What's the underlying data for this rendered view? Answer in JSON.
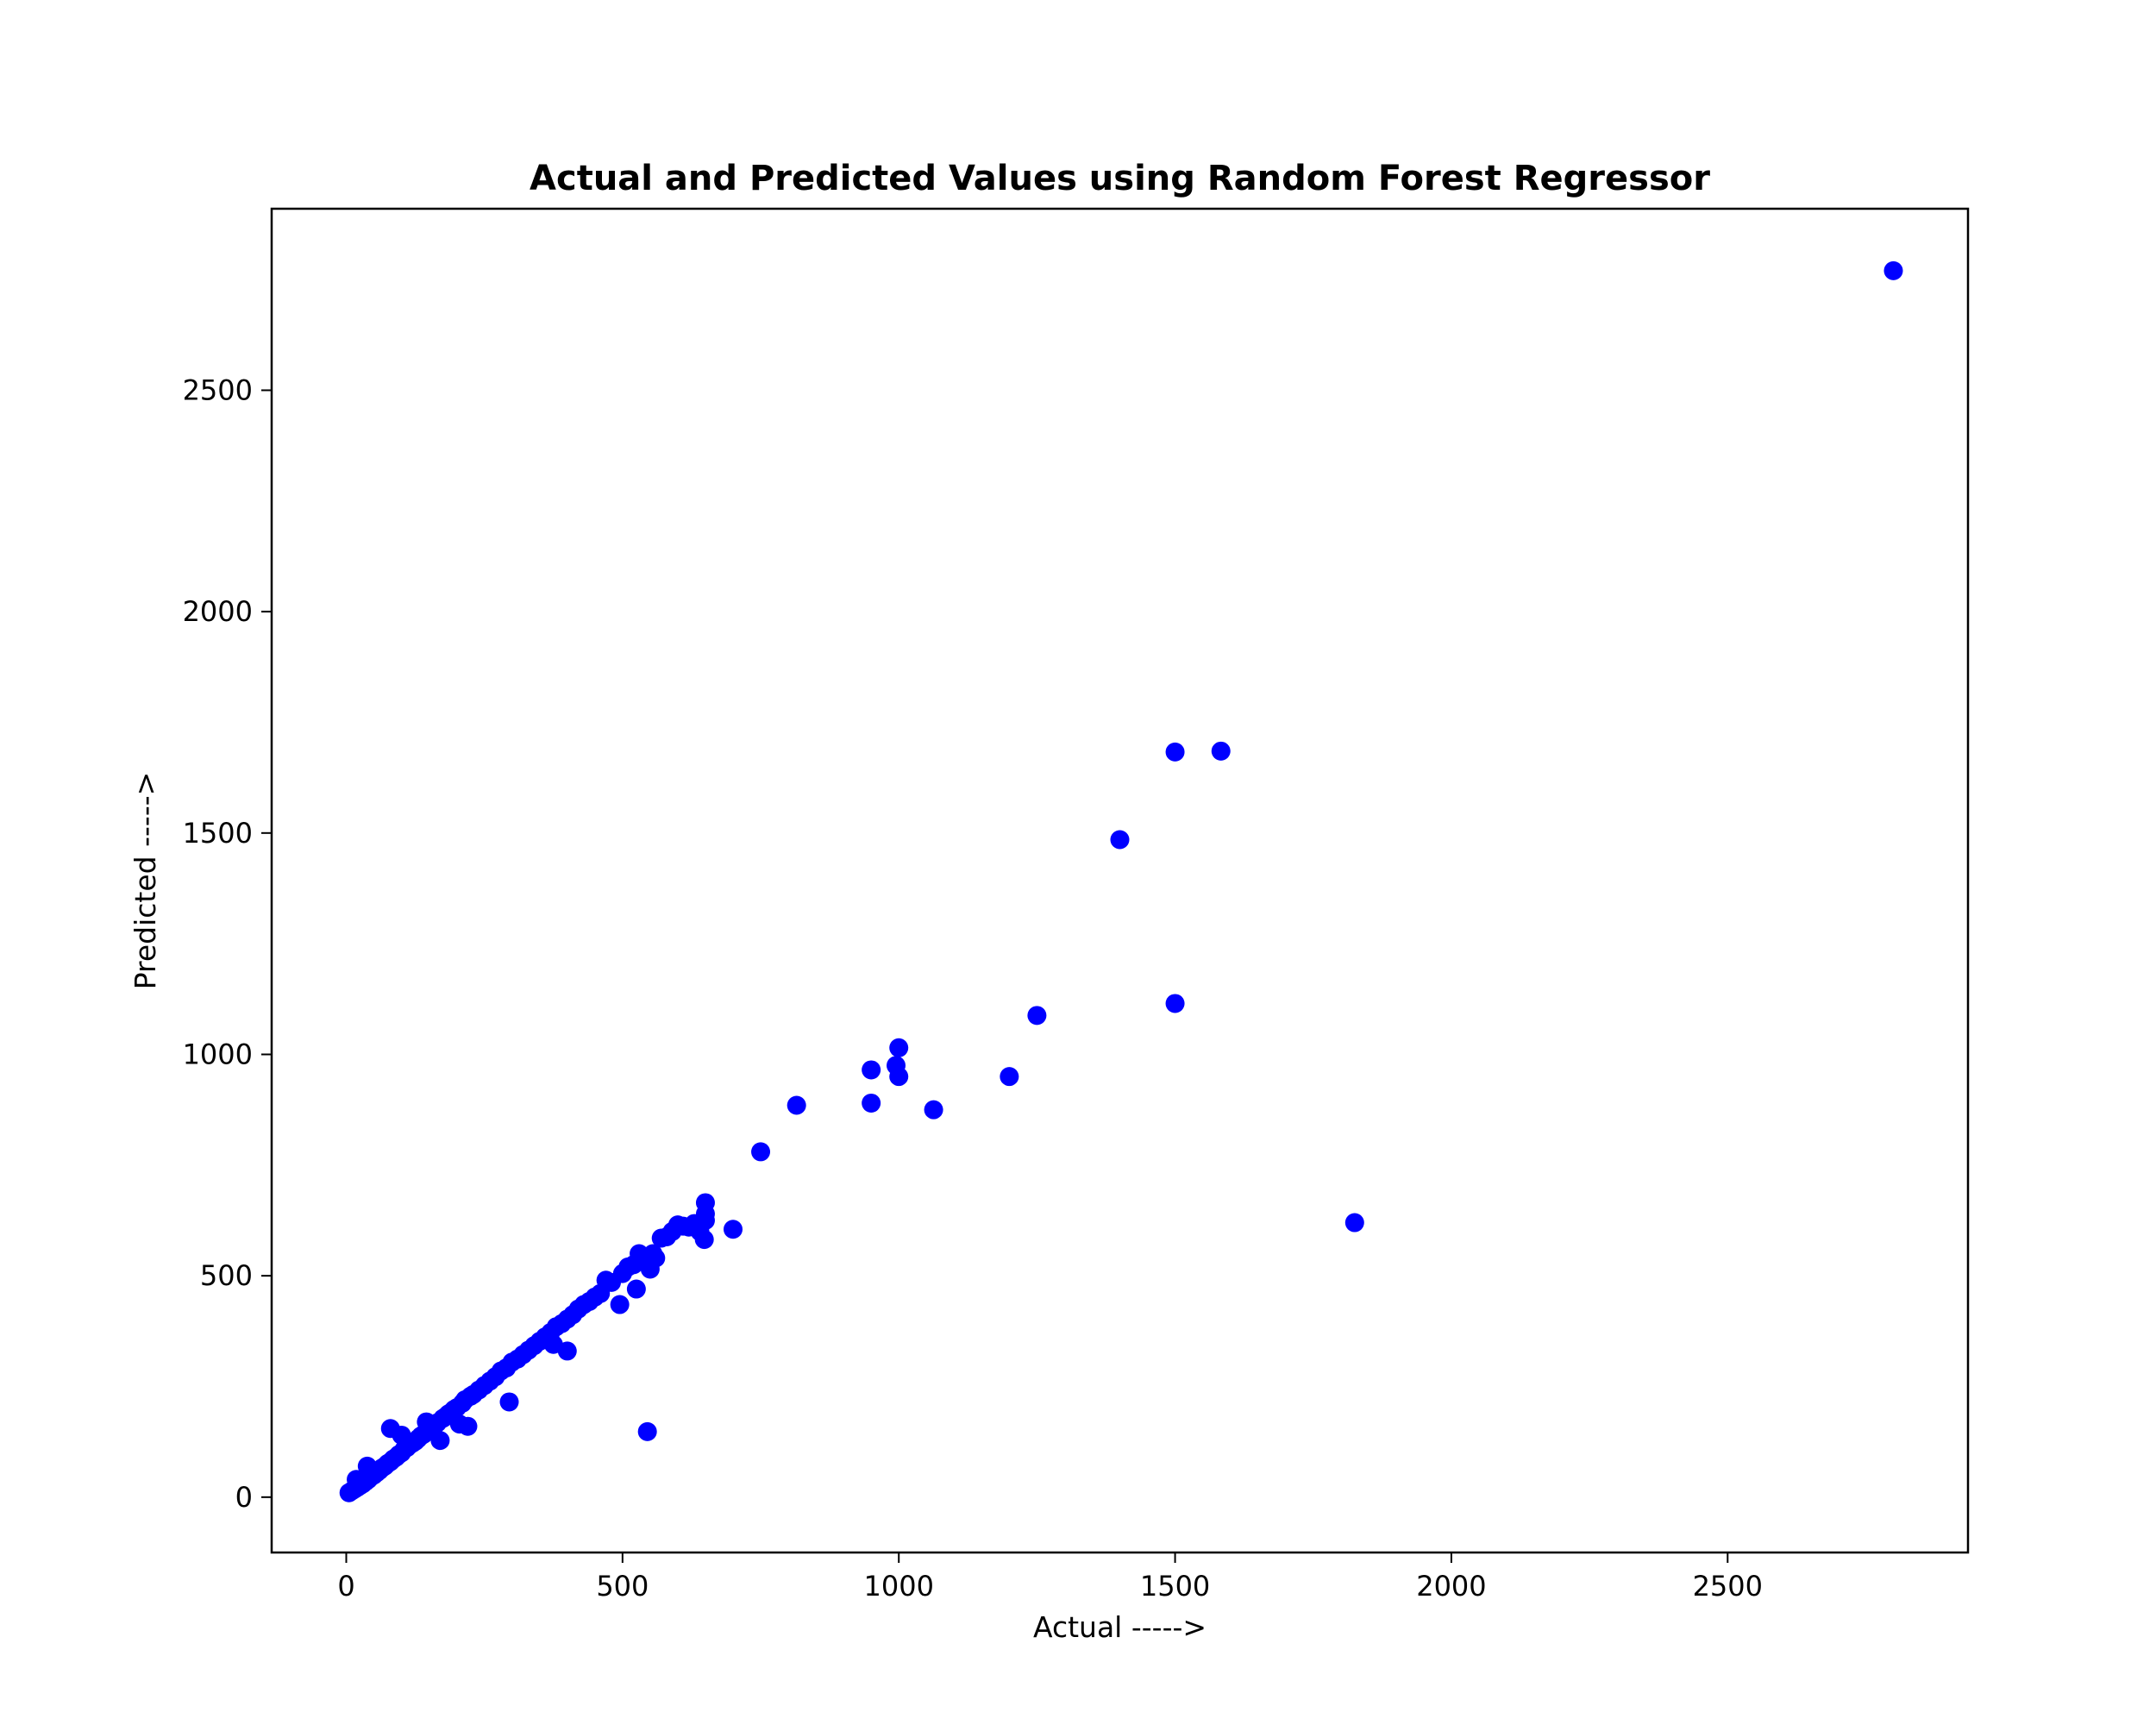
{
  "chart_data": {
    "type": "scatter",
    "title": "Actual and Predicted Values using Random Forest Regressor",
    "xlabel": "Actual ----->",
    "ylabel": "Predicted ----->",
    "xlim": [
      -135,
      2935
    ],
    "ylim": [
      -125,
      2910
    ],
    "xticks": [
      0,
      500,
      1000,
      1500,
      2000,
      2500
    ],
    "yticks": [
      0,
      500,
      1000,
      1500,
      2000,
      2500
    ],
    "xtick_labels": [
      "0",
      "500",
      "1000",
      "1500",
      "2000",
      "2500"
    ],
    "ytick_labels": [
      "0",
      "500",
      "1000",
      "1500",
      "2000",
      "2500"
    ],
    "grid": false,
    "legend": "none",
    "marker_color": "#0000ff",
    "series": [
      {
        "color": "#0000ff",
        "points": [
          [
            5,
            10
          ],
          [
            10,
            14
          ],
          [
            15,
            18
          ],
          [
            18,
            40
          ],
          [
            20,
            22
          ],
          [
            25,
            26
          ],
          [
            30,
            30
          ],
          [
            35,
            35
          ],
          [
            38,
            70
          ],
          [
            40,
            40
          ],
          [
            45,
            46
          ],
          [
            50,
            50
          ],
          [
            55,
            55
          ],
          [
            60,
            60
          ],
          [
            65,
            66
          ],
          [
            70,
            70
          ],
          [
            75,
            76
          ],
          [
            80,
            80
          ],
          [
            80,
            155
          ],
          [
            85,
            86
          ],
          [
            90,
            90
          ],
          [
            95,
            96
          ],
          [
            100,
            100
          ],
          [
            100,
            140
          ],
          [
            105,
            108
          ],
          [
            110,
            112
          ],
          [
            115,
            118
          ],
          [
            120,
            122
          ],
          [
            125,
            126
          ],
          [
            130,
            132
          ],
          [
            135,
            138
          ],
          [
            140,
            142
          ],
          [
            145,
            170
          ],
          [
            150,
            150
          ],
          [
            155,
            158
          ],
          [
            160,
            162
          ],
          [
            165,
            168
          ],
          [
            170,
            128
          ],
          [
            175,
            178
          ],
          [
            180,
            182
          ],
          [
            185,
            188
          ],
          [
            190,
            192
          ],
          [
            195,
            198
          ],
          [
            200,
            202
          ],
          [
            205,
            165
          ],
          [
            210,
            212
          ],
          [
            215,
            220
          ],
          [
            220,
            160
          ],
          [
            225,
            228
          ],
          [
            230,
            232
          ],
          [
            240,
            242
          ],
          [
            250,
            252
          ],
          [
            260,
            262
          ],
          [
            270,
            272
          ],
          [
            280,
            285
          ],
          [
            290,
            292
          ],
          [
            295,
            215
          ],
          [
            300,
            305
          ],
          [
            310,
            312
          ],
          [
            320,
            322
          ],
          [
            330,
            332
          ],
          [
            340,
            342
          ],
          [
            350,
            352
          ],
          [
            360,
            362
          ],
          [
            370,
            372
          ],
          [
            375,
            345
          ],
          [
            380,
            385
          ],
          [
            390,
            392
          ],
          [
            400,
            330
          ],
          [
            400,
            402
          ],
          [
            410,
            412
          ],
          [
            420,
            425
          ],
          [
            430,
            435
          ],
          [
            440,
            442
          ],
          [
            450,
            452
          ],
          [
            460,
            460
          ],
          [
            470,
            490
          ],
          [
            480,
            485
          ],
          [
            495,
            435
          ],
          [
            500,
            505
          ],
          [
            510,
            520
          ],
          [
            520,
            525
          ],
          [
            525,
            470
          ],
          [
            530,
            550
          ],
          [
            540,
            540
          ],
          [
            545,
            148
          ],
          [
            550,
            515
          ],
          [
            555,
            550
          ],
          [
            560,
            540
          ],
          [
            570,
            585
          ],
          [
            580,
            588
          ],
          [
            590,
            600
          ],
          [
            600,
            615
          ],
          [
            610,
            612
          ],
          [
            620,
            610
          ],
          [
            630,
            618
          ],
          [
            640,
            600
          ],
          [
            648,
            582
          ],
          [
            650,
            625
          ],
          [
            650,
            665
          ],
          [
            650,
            640
          ],
          [
            700,
            605
          ],
          [
            750,
            780
          ],
          [
            815,
            885
          ],
          [
            950,
            890
          ],
          [
            950,
            965
          ],
          [
            995,
            975
          ],
          [
            1000,
            1015
          ],
          [
            1000,
            950
          ],
          [
            1063,
            875
          ],
          [
            1200,
            950
          ],
          [
            1250,
            1088
          ],
          [
            1400,
            1485
          ],
          [
            1500,
            1115
          ],
          [
            1500,
            1683
          ],
          [
            1583,
            1685
          ],
          [
            1825,
            620
          ],
          [
            2800,
            2770
          ]
        ]
      }
    ]
  }
}
